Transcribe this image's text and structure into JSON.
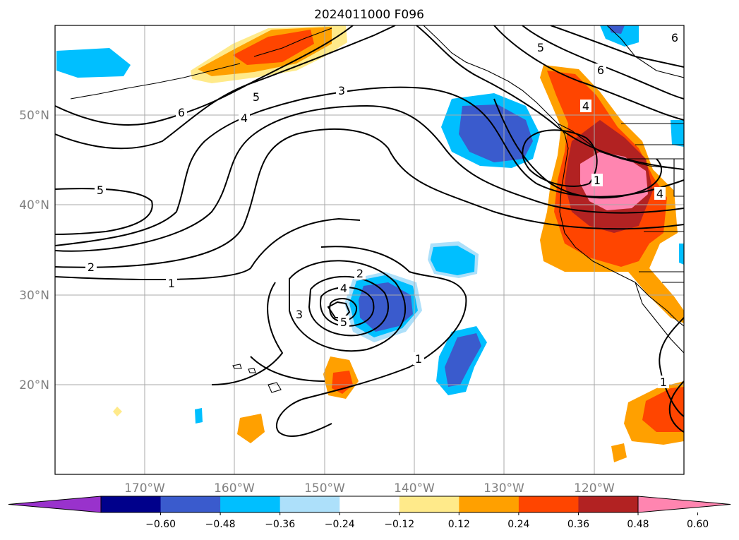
{
  "title": "2024011000 F096",
  "map": {
    "lon_labels": [
      "170°W",
      "160°W",
      "150°W",
      "140°W",
      "130°W",
      "120°W"
    ],
    "lat_labels": [
      "50°N",
      "40°N",
      "30°N",
      "20°N"
    ]
  },
  "colorbar": {
    "colors": [
      "#9932cc",
      "#00008b",
      "#3a5bcd",
      "#00bfff",
      "#ade0fa",
      "#ffffff",
      "#ffea8a",
      "#ffa000",
      "#ff4500",
      "#b22222",
      "#ff85b0"
    ],
    "tick_labels": [
      "−0.60",
      "−0.48",
      "−0.36",
      "−0.24",
      "−0.12",
      "0.12",
      "0.24",
      "0.36",
      "0.48",
      "0.60"
    ]
  },
  "contour_labels": [
    "6",
    "5",
    "4",
    "3",
    "5",
    "2",
    "1",
    "1",
    "2",
    "3",
    "4",
    "5",
    "1",
    "5",
    "6",
    "4",
    "4",
    "1",
    "6"
  ]
}
